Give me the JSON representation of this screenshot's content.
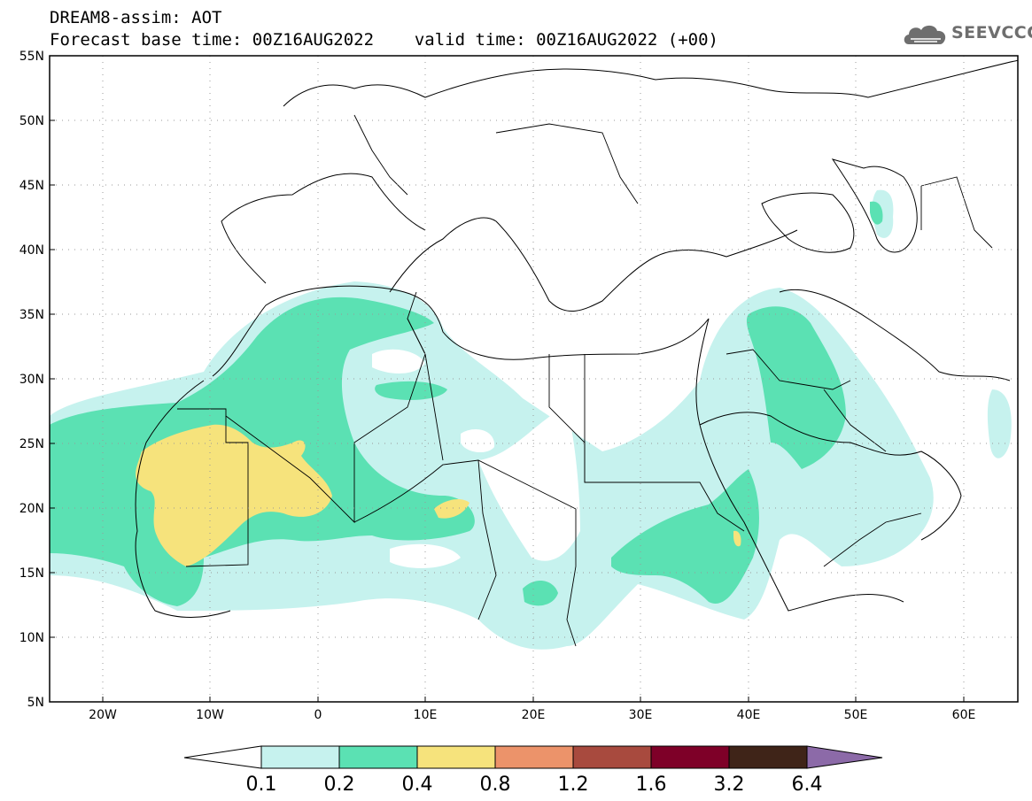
{
  "header": {
    "line1": "DREAM8-assim: AOT",
    "line2_base": "Forecast base time: 00Z16AUG2022",
    "line2_valid": "valid time: 00Z16AUG2022 (+00)"
  },
  "logo": {
    "text": "SEEVCCC",
    "icon": "cloud-logo-icon"
  },
  "map": {
    "region": "North Africa / Middle East",
    "lon_range": [
      -25,
      65
    ],
    "lat_range": [
      5,
      55
    ],
    "lat_ticks": [
      "5N",
      "10N",
      "15N",
      "20N",
      "25N",
      "30N",
      "35N",
      "40N",
      "45N",
      "50N",
      "55N"
    ],
    "lon_ticks": [
      "20W",
      "10W",
      "0",
      "10E",
      "20E",
      "30E",
      "40E",
      "50E",
      "60E"
    ],
    "colors": {
      "level1": "#c6f2ee",
      "level2": "#5be1b3",
      "level3": "#f6e37c",
      "border": "#000000",
      "grid": "#999999"
    }
  },
  "colorbar": {
    "labels": [
      "0.1",
      "0.2",
      "0.4",
      "0.8",
      "1.2",
      "1.6",
      "3.2",
      "6.4"
    ],
    "colors": [
      "#ffffff",
      "#c6f2ee",
      "#5be1b3",
      "#f6e37c",
      "#ec936a",
      "#a84a3e",
      "#7e0028",
      "#3f2418",
      "#8c6aa8"
    ]
  }
}
